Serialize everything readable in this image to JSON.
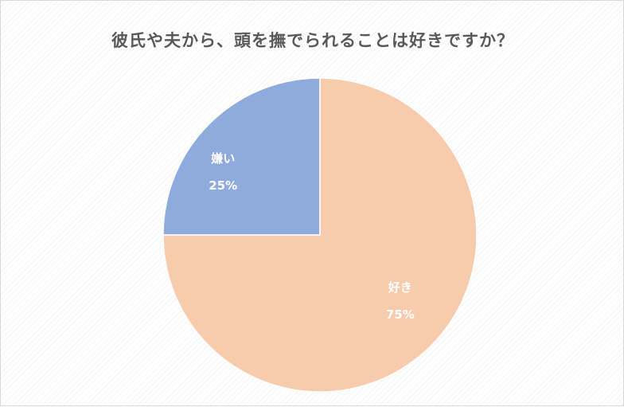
{
  "chart_data": {
    "type": "pie",
    "title": "彼氏や夫から、頭を撫でられることは好きですか？",
    "slices": [
      {
        "label": "嫌い",
        "value": 25,
        "percent_label": "25%",
        "color": "#8FAADC"
      },
      {
        "label": "好き",
        "value": 75,
        "percent_label": "75%",
        "color": "#F8CBAD"
      }
    ],
    "start_angle_deg": 0,
    "direction": "counterclockwise",
    "legend": "none",
    "data_labels": "inside"
  }
}
